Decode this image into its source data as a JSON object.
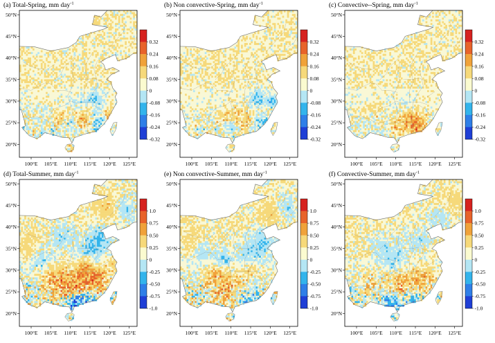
{
  "chart_data": [
    {
      "type": "heatmap",
      "title": "(a) Total-Spring, mm day",
      "title_sup": "-1",
      "season": "Spring",
      "component": "Total",
      "colorbar_ticks": [
        "0.32",
        "0.24",
        "0.16",
        "0.08",
        "0",
        "-0.08",
        "-0.16",
        "-0.24",
        "-0.32"
      ],
      "x_ticks": [
        "100°E",
        "105°E",
        "110°E",
        "115°E",
        "120°E",
        "125°E"
      ],
      "y_ticks": [
        "20°N",
        "25°N",
        "30°N",
        "35°N",
        "40°N",
        "45°N",
        "50°N"
      ],
      "xlim": [
        97,
        127
      ],
      "ylim": [
        17,
        51
      ]
    },
    {
      "type": "heatmap",
      "title": "(b) Non convective-Spring, mm day",
      "title_sup": "-1",
      "season": "Spring",
      "component": "Non convective",
      "colorbar_ticks": [
        "0.32",
        "0.24",
        "0.16",
        "0.08",
        "0",
        "-0.08",
        "-0.16",
        "-0.24",
        "-0.32"
      ],
      "x_ticks": [
        "100°E",
        "105°E",
        "110°E",
        "115°E",
        "120°E",
        "125°E"
      ],
      "y_ticks": [
        "20°N",
        "25°N",
        "30°N",
        "35°N",
        "40°N",
        "45°N",
        "50°N"
      ],
      "xlim": [
        97,
        127
      ],
      "ylim": [
        17,
        51
      ]
    },
    {
      "type": "heatmap",
      "title": "(c) Convective--Spring, mm day",
      "title_sup": "-1",
      "season": "Spring",
      "component": "Convective",
      "colorbar_ticks": [
        "0.32",
        "0.24",
        "0.16",
        "0.08",
        "0",
        "-0.08",
        "-0.16",
        "-0.24",
        "-0.32"
      ],
      "x_ticks": [
        "100°E",
        "105°E",
        "110°E",
        "115°E",
        "120°E",
        "125°E"
      ],
      "y_ticks": [
        "20°N",
        "25°N",
        "30°N",
        "35°N",
        "40°N",
        "45°N",
        "50°N"
      ],
      "xlim": [
        97,
        127
      ],
      "ylim": [
        17,
        51
      ]
    },
    {
      "type": "heatmap",
      "title": "(d) Total-Summer, mm day",
      "title_sup": "-1",
      "season": "Summer",
      "component": "Total",
      "colorbar_ticks": [
        "1.0",
        "0.75",
        "0.50",
        "0.25",
        "0",
        "-0.25",
        "-0.50",
        "-0.75",
        "-1.0"
      ],
      "x_ticks": [
        "100°E",
        "105°E",
        "110°E",
        "115°E",
        "120°E",
        "125°E"
      ],
      "y_ticks": [
        "20°N",
        "25°N",
        "30°N",
        "35°N",
        "40°N",
        "45°N",
        "50°N"
      ],
      "xlim": [
        97,
        127
      ],
      "ylim": [
        17,
        51
      ]
    },
    {
      "type": "heatmap",
      "title": "(e) Non convective-Summer, mm day",
      "title_sup": "-1",
      "season": "Summer",
      "component": "Non convective",
      "colorbar_ticks": [
        "1.0",
        "0.75",
        "0.50",
        "0.25",
        "0",
        "-0.25",
        "-0.50",
        "-0.75",
        "-1.0"
      ],
      "x_ticks": [
        "100°E",
        "105°E",
        "110°E",
        "115°E",
        "120°E",
        "125°E"
      ],
      "y_ticks": [
        "20°N",
        "25°N",
        "30°N",
        "35°N",
        "40°N",
        "45°N",
        "50°N"
      ],
      "xlim": [
        97,
        127
      ],
      "ylim": [
        17,
        51
      ]
    },
    {
      "type": "heatmap",
      "title": "(f) Convective-Summer, mm day",
      "title_sup": "-1",
      "season": "Summer",
      "component": "Convective",
      "colorbar_ticks": [
        "1.0",
        "0.75",
        "0.50",
        "0.25",
        "0",
        "-0.25",
        "-0.50",
        "-0.75",
        "-1.0"
      ],
      "x_ticks": [
        "100°E",
        "105°E",
        "110°E",
        "115°E",
        "120°E",
        "125°E"
      ],
      "y_ticks": [
        "20°N",
        "25°N",
        "30°N",
        "35°N",
        "40°N",
        "45°N",
        "50°N"
      ],
      "xlim": [
        97,
        127
      ],
      "ylim": [
        17,
        51
      ]
    }
  ],
  "colors": {
    "scale": [
      "#1f3fd6",
      "#2f7fe8",
      "#33b4ec",
      "#b4e6f4",
      "#fbfbd0",
      "#f6d97a",
      "#f0a23a",
      "#e8632a",
      "#d6221f"
    ],
    "land_fill": "#f9f8d6",
    "boundary": "#6d6d6d"
  }
}
